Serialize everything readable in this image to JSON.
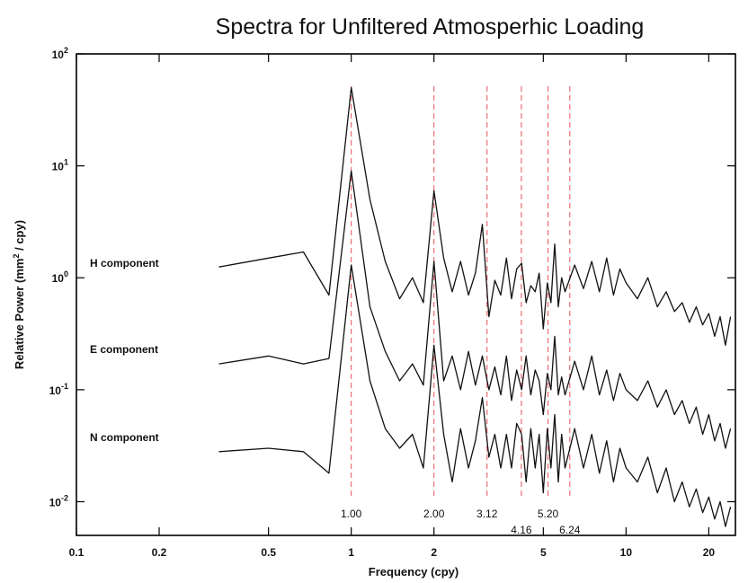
{
  "chart_data": {
    "type": "line",
    "title": "Spectra for Unfiltered Atmosperhic Loading",
    "xlabel": "Frequency (cpy)",
    "ylabel_main": "Relative Power (mm",
    "ylabel_sup": "2",
    "ylabel_tail": " / cpy)",
    "x_scale": "log",
    "y_scale": "log",
    "xlim": [
      0.1,
      25
    ],
    "ylim": [
      0.005,
      100
    ],
    "x_ticks": [
      {
        "value": 0.1,
        "label": "0.1"
      },
      {
        "value": 0.2,
        "label": "0.2"
      },
      {
        "value": 0.5,
        "label": "0.5"
      },
      {
        "value": 1,
        "label": "1"
      },
      {
        "value": 2,
        "label": "2"
      },
      {
        "value": 5,
        "label": "5"
      },
      {
        "value": 10,
        "label": "10"
      },
      {
        "value": 20,
        "label": "20"
      }
    ],
    "y_ticks": [
      {
        "value": 100,
        "base": "10",
        "exp": "2"
      },
      {
        "value": 10,
        "base": "10",
        "exp": "1"
      },
      {
        "value": 1,
        "base": "10",
        "exp": "0"
      },
      {
        "value": 0.1,
        "base": "10",
        "exp": "-1"
      },
      {
        "value": 0.01,
        "base": "10",
        "exp": "-2"
      }
    ],
    "peak_markers": [
      {
        "value": 1.0,
        "label": "1.00",
        "row": 1
      },
      {
        "value": 2.0,
        "label": "2.00",
        "row": 1
      },
      {
        "value": 3.12,
        "label": "3.12",
        "row": 1
      },
      {
        "value": 4.16,
        "label": "4.16",
        "row": 2
      },
      {
        "value": 5.2,
        "label": "5.20",
        "row": 1
      },
      {
        "value": 6.24,
        "label": "6.24",
        "row": 2
      }
    ],
    "series": [
      {
        "name": "H component",
        "label_value": 1.0,
        "x": [
          0.33,
          0.5,
          0.67,
          0.83,
          1.0,
          1.17,
          1.33,
          1.5,
          1.67,
          1.83,
          2.0,
          2.17,
          2.33,
          2.5,
          2.67,
          2.83,
          3.0,
          3.17,
          3.33,
          3.5,
          3.67,
          3.83,
          4.0,
          4.17,
          4.33,
          4.5,
          4.67,
          4.83,
          5.0,
          5.17,
          5.33,
          5.5,
          5.67,
          5.83,
          6.0,
          6.5,
          7.0,
          7.5,
          8.0,
          8.5,
          9.0,
          9.5,
          10.0,
          11.0,
          12.0,
          13.0,
          14.0,
          15.0,
          16.0,
          17.0,
          18.0,
          19.0,
          20.0,
          21.0,
          22.0,
          23.0,
          24.0
        ],
        "y": [
          1.25,
          1.5,
          1.7,
          0.7,
          50.0,
          5.0,
          1.4,
          0.65,
          1.0,
          0.6,
          6.0,
          1.5,
          0.75,
          1.4,
          0.7,
          1.1,
          3.0,
          0.45,
          0.95,
          0.7,
          1.5,
          0.65,
          1.2,
          1.35,
          0.6,
          0.85,
          0.75,
          1.1,
          0.35,
          0.9,
          0.6,
          2.0,
          0.55,
          1.0,
          0.75,
          1.3,
          0.8,
          1.4,
          0.75,
          1.5,
          0.7,
          1.2,
          0.9,
          0.65,
          1.0,
          0.55,
          0.75,
          0.5,
          0.6,
          0.4,
          0.55,
          0.38,
          0.48,
          0.3,
          0.45,
          0.25,
          0.45
        ]
      },
      {
        "name": "E component",
        "label_value": 0.17,
        "x": [
          0.33,
          0.5,
          0.67,
          0.83,
          1.0,
          1.17,
          1.33,
          1.5,
          1.67,
          1.83,
          2.0,
          2.17,
          2.33,
          2.5,
          2.67,
          2.83,
          3.0,
          3.17,
          3.33,
          3.5,
          3.67,
          3.83,
          4.0,
          4.17,
          4.33,
          4.5,
          4.67,
          4.83,
          5.0,
          5.17,
          5.33,
          5.5,
          5.67,
          5.83,
          6.0,
          6.5,
          7.0,
          7.5,
          8.0,
          8.5,
          9.0,
          9.5,
          10.0,
          11.0,
          12.0,
          13.0,
          14.0,
          15.0,
          16.0,
          17.0,
          18.0,
          19.0,
          20.0,
          21.0,
          22.0,
          23.0,
          24.0
        ],
        "y": [
          0.17,
          0.2,
          0.17,
          0.19,
          9.0,
          0.55,
          0.22,
          0.12,
          0.17,
          0.11,
          1.4,
          0.12,
          0.2,
          0.1,
          0.22,
          0.11,
          0.2,
          0.1,
          0.16,
          0.09,
          0.2,
          0.08,
          0.15,
          0.1,
          0.2,
          0.09,
          0.15,
          0.12,
          0.06,
          0.14,
          0.1,
          0.3,
          0.09,
          0.13,
          0.09,
          0.18,
          0.1,
          0.2,
          0.09,
          0.15,
          0.08,
          0.14,
          0.1,
          0.08,
          0.12,
          0.07,
          0.1,
          0.06,
          0.08,
          0.05,
          0.07,
          0.04,
          0.06,
          0.035,
          0.05,
          0.03,
          0.045
        ]
      },
      {
        "name": "N component",
        "label_value": 0.028,
        "x": [
          0.33,
          0.5,
          0.67,
          0.83,
          1.0,
          1.17,
          1.33,
          1.5,
          1.67,
          1.83,
          2.0,
          2.17,
          2.33,
          2.5,
          2.67,
          2.83,
          3.0,
          3.17,
          3.33,
          3.5,
          3.67,
          3.83,
          4.0,
          4.17,
          4.33,
          4.5,
          4.67,
          4.83,
          5.0,
          5.17,
          5.33,
          5.5,
          5.67,
          5.83,
          6.0,
          6.5,
          7.0,
          7.5,
          8.0,
          8.5,
          9.0,
          9.5,
          10.0,
          11.0,
          12.0,
          13.0,
          14.0,
          15.0,
          16.0,
          17.0,
          18.0,
          19.0,
          20.0,
          21.0,
          22.0,
          23.0,
          24.0
        ],
        "y": [
          0.028,
          0.03,
          0.028,
          0.018,
          1.3,
          0.12,
          0.045,
          0.03,
          0.04,
          0.02,
          0.25,
          0.04,
          0.015,
          0.045,
          0.02,
          0.035,
          0.085,
          0.025,
          0.04,
          0.02,
          0.04,
          0.02,
          0.05,
          0.04,
          0.015,
          0.045,
          0.02,
          0.04,
          0.012,
          0.045,
          0.02,
          0.06,
          0.015,
          0.04,
          0.02,
          0.045,
          0.02,
          0.04,
          0.018,
          0.035,
          0.015,
          0.03,
          0.02,
          0.015,
          0.025,
          0.012,
          0.02,
          0.01,
          0.015,
          0.009,
          0.013,
          0.008,
          0.011,
          0.007,
          0.01,
          0.006,
          0.009
        ]
      }
    ]
  }
}
